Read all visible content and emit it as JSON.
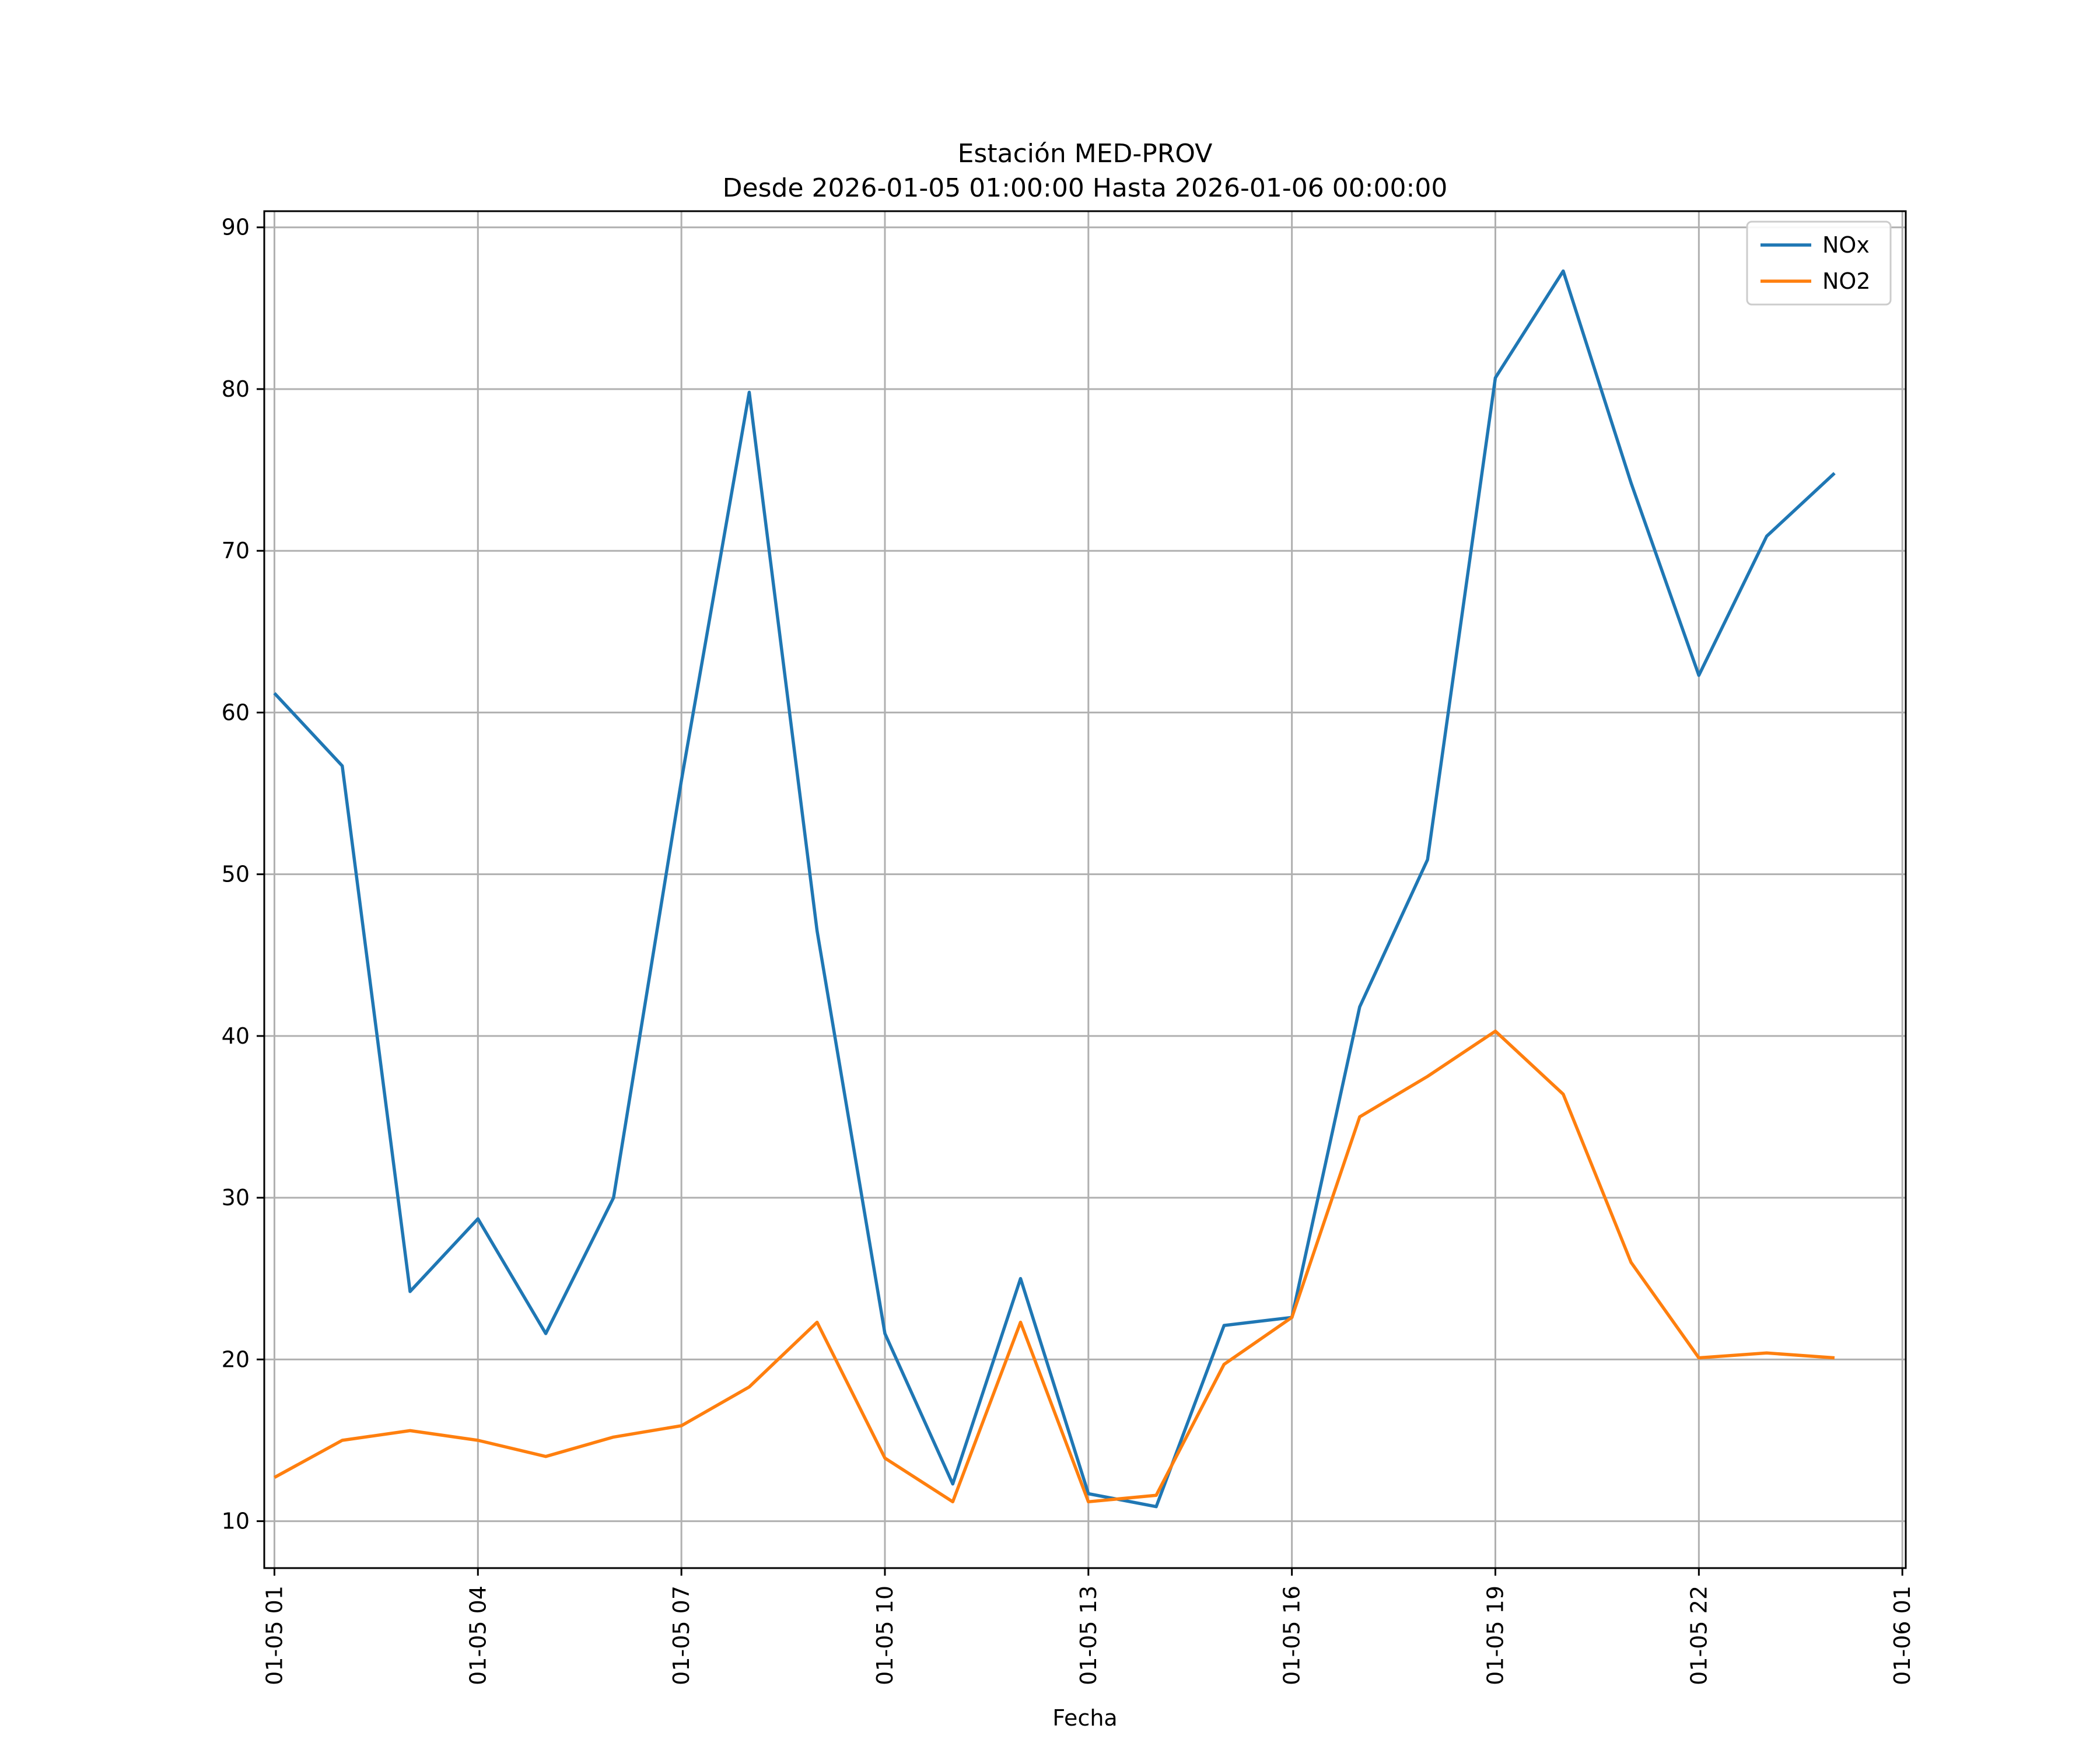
{
  "chart_data": {
    "type": "line",
    "title": "Estación MED-PROV",
    "subtitle": "Desde 2026-01-05 01:00:00 Hasta 2026-01-06 00:00:00",
    "xlabel": "Fecha",
    "ylabel": "",
    "x": [
      "01-05 01",
      "01-05 02",
      "01-05 03",
      "01-05 04",
      "01-05 05",
      "01-05 06",
      "01-05 07",
      "01-05 08",
      "01-05 09",
      "01-05 10",
      "01-05 11",
      "01-05 12",
      "01-05 13",
      "01-05 14",
      "01-05 15",
      "01-05 16",
      "01-05 17",
      "01-05 18",
      "01-05 19",
      "01-05 20",
      "01-05 21",
      "01-05 22",
      "01-05 23",
      "01-06 00"
    ],
    "x_ticks": [
      "01-05 01",
      "01-05 04",
      "01-05 07",
      "01-05 10",
      "01-05 13",
      "01-05 16",
      "01-05 19",
      "01-05 22",
      "01-06 01"
    ],
    "y_ticks": [
      10,
      20,
      30,
      40,
      50,
      60,
      70,
      80,
      90
    ],
    "ylim": [
      7.1,
      91.0
    ],
    "xlim_hours": [
      -0.15,
      24.05
    ],
    "grid": true,
    "legend_position": "top-right",
    "series": [
      {
        "name": "NOx",
        "color": "#1f77b4",
        "values": [
          61.2,
          56.7,
          24.2,
          28.7,
          21.6,
          30.0,
          55.8,
          79.8,
          46.5,
          21.6,
          12.3,
          25.0,
          11.7,
          10.9,
          22.1,
          22.6,
          41.8,
          50.9,
          80.7,
          87.3,
          74.2,
          62.3,
          70.9,
          74.8
        ]
      },
      {
        "name": "NO2",
        "color": "#ff7f0e",
        "values": [
          12.7,
          15.0,
          15.6,
          15.0,
          14.0,
          15.2,
          15.9,
          18.3,
          22.3,
          13.9,
          11.2,
          22.3,
          11.2,
          11.6,
          19.7,
          22.6,
          35.0,
          37.5,
          40.3,
          36.4,
          26.0,
          20.1,
          20.4,
          20.1
        ]
      }
    ]
  }
}
